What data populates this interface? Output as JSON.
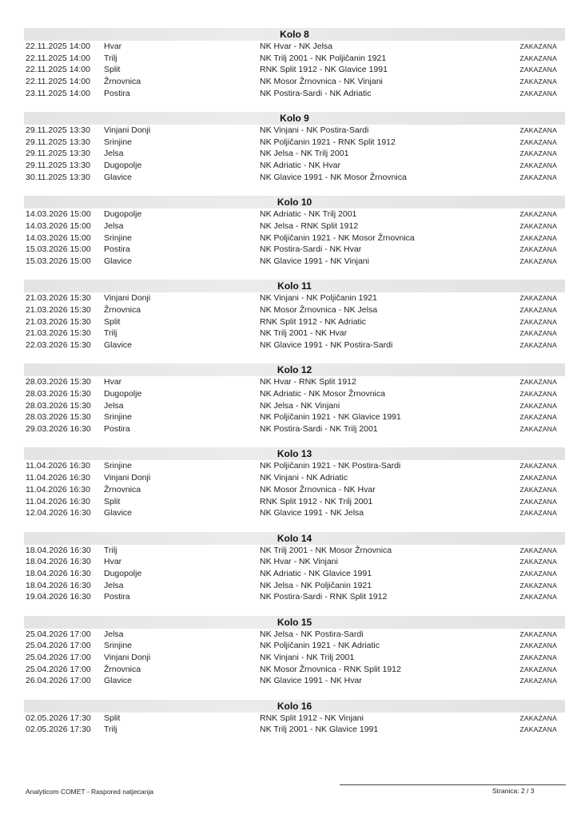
{
  "rounds": [
    {
      "title": "Kolo 8",
      "matches": [
        [
          "22.11.2025 14:00",
          "Hvar",
          "NK Hvar - NK Jelsa",
          "ZAKAZANA"
        ],
        [
          "22.11.2025 14:00",
          "Trilj",
          "NK Trilj 2001 - NK Poljičanin 1921",
          "ZAKAZANA"
        ],
        [
          "22.11.2025 14:00",
          "Split",
          "RNK Split 1912 - NK Glavice 1991",
          "ZAKAZANA"
        ],
        [
          "22.11.2025 14:00",
          "Žrnovnica",
          "NK Mosor Žrnovnica - NK Vinjani",
          "ZAKAZANA"
        ],
        [
          "23.11.2025 14:00",
          "Postira",
          "NK Postira-Sardi - NK Adriatic",
          "ZAKAZANA"
        ]
      ]
    },
    {
      "title": "Kolo 9",
      "matches": [
        [
          "29.11.2025 13:30",
          "Vinjani Donji",
          "NK Vinjani - NK Postira-Sardi",
          "ZAKAZANA"
        ],
        [
          "29.11.2025 13:30",
          "Srinjine",
          "NK Poljičanin 1921 - RNK Split 1912",
          "ZAKAZANA"
        ],
        [
          "29.11.2025 13:30",
          "Jelsa",
          "NK Jelsa - NK Trilj 2001",
          "ZAKAZANA"
        ],
        [
          "29.11.2025 13:30",
          "Dugopolje",
          "NK Adriatic - NK Hvar",
          "ZAKAZANA"
        ],
        [
          "30.11.2025 13:30",
          "Glavice",
          "NK Glavice 1991 - NK Mosor Žrnovnica",
          "ZAKAZANA"
        ]
      ]
    },
    {
      "title": "Kolo 10",
      "matches": [
        [
          "14.03.2026 15:00",
          "Dugopolje",
          "NK Adriatic - NK Trilj 2001",
          "ZAKAZANA"
        ],
        [
          "14.03.2026 15:00",
          "Jelsa",
          "NK Jelsa - RNK Split 1912",
          "ZAKAZANA"
        ],
        [
          "14.03.2026 15:00",
          "Srinjine",
          "NK Poljičanin 1921 - NK Mosor Žrnovnica",
          "ZAKAZANA"
        ],
        [
          "15.03.2026 15:00",
          "Postira",
          "NK Postira-Sardi - NK Hvar",
          "ZAKAZANA"
        ],
        [
          "15.03.2026 15:00",
          "Glavice",
          "NK Glavice 1991 - NK Vinjani",
          "ZAKAZANA"
        ]
      ]
    },
    {
      "title": "Kolo 11",
      "matches": [
        [
          "21.03.2026 15:30",
          "Vinjani Donji",
          "NK Vinjani - NK Poljičanin 1921",
          "ZAKAZANA"
        ],
        [
          "21.03.2026 15:30",
          "Žrnovnica",
          "NK Mosor Žrnovnica - NK Jelsa",
          "ZAKAZANA"
        ],
        [
          "21.03.2026 15:30",
          "Split",
          "RNK Split 1912 - NK Adriatic",
          "ZAKAZANA"
        ],
        [
          "21.03.2026 15:30",
          "Trilj",
          "NK Trilj 2001 - NK Hvar",
          "ZAKAZANA"
        ],
        [
          "22.03.2026 15:30",
          "Glavice",
          "NK Glavice 1991 - NK Postira-Sardi",
          "ZAKAZANA"
        ]
      ]
    },
    {
      "title": "Kolo 12",
      "matches": [
        [
          "28.03.2026 15:30",
          "Hvar",
          "NK Hvar - RNK Split 1912",
          "ZAKAZANA"
        ],
        [
          "28.03.2026 15:30",
          "Dugopolje",
          "NK Adriatic - NK Mosor Žrnovnica",
          "ZAKAZANA"
        ],
        [
          "28.03.2026 15:30",
          "Jelsa",
          "NK Jelsa - NK Vinjani",
          "ZAKAZANA"
        ],
        [
          "28.03.2026 15:30",
          "Srinjine",
          "NK Poljičanin 1921 - NK Glavice 1991",
          "ZAKAZANA"
        ],
        [
          "29.03.2026 16:30",
          "Postira",
          "NK Postira-Sardi - NK Trilj 2001",
          "ZAKAZANA"
        ]
      ]
    },
    {
      "title": "Kolo 13",
      "matches": [
        [
          "11.04.2026 16:30",
          "Srinjine",
          "NK Poljičanin 1921 - NK Postira-Sardi",
          "ZAKAZANA"
        ],
        [
          "11.04.2026 16:30",
          "Vinjani Donji",
          "NK Vinjani - NK Adriatic",
          "ZAKAZANA"
        ],
        [
          "11.04.2026 16:30",
          "Žrnovnica",
          "NK Mosor Žrnovnica - NK Hvar",
          "ZAKAZANA"
        ],
        [
          "11.04.2026 16:30",
          "Split",
          "RNK Split 1912 - NK Trilj 2001",
          "ZAKAZANA"
        ],
        [
          "12.04.2026 16:30",
          "Glavice",
          "NK Glavice 1991 - NK Jelsa",
          "ZAKAZANA"
        ]
      ]
    },
    {
      "title": "Kolo 14",
      "matches": [
        [
          "18.04.2026 16:30",
          "Trilj",
          "NK Trilj 2001 - NK Mosor Žrnovnica",
          "ZAKAZANA"
        ],
        [
          "18.04.2026 16:30",
          "Hvar",
          "NK Hvar - NK Vinjani",
          "ZAKAZANA"
        ],
        [
          "18.04.2026 16:30",
          "Dugopolje",
          "NK Adriatic - NK Glavice 1991",
          "ZAKAZANA"
        ],
        [
          "18.04.2026 16:30",
          "Jelsa",
          "NK Jelsa - NK Poljičanin 1921",
          "ZAKAZANA"
        ],
        [
          "19.04.2026 16:30",
          "Postira",
          "NK Postira-Sardi - RNK Split 1912",
          "ZAKAZANA"
        ]
      ]
    },
    {
      "title": "Kolo 15",
      "matches": [
        [
          "25.04.2026 17:00",
          "Jelsa",
          "NK Jelsa - NK Postira-Sardi",
          "ZAKAZANA"
        ],
        [
          "25.04.2026 17:00",
          "Srinjine",
          "NK Poljičanin 1921 - NK Adriatic",
          "ZAKAZANA"
        ],
        [
          "25.04.2026 17:00",
          "Vinjani Donji",
          "NK Vinjani - NK Trilj 2001",
          "ZAKAZANA"
        ],
        [
          "25.04.2026 17:00",
          "Žrnovnica",
          "NK Mosor Žrnovnica - RNK Split 1912",
          "ZAKAZANA"
        ],
        [
          "26.04.2026 17:00",
          "Glavice",
          "NK Glavice 1991 - NK Hvar",
          "ZAKAZANA"
        ]
      ]
    },
    {
      "title": "Kolo 16",
      "matches": [
        [
          "02.05.2026 17:30",
          "Split",
          "RNK Split 1912 - NK Vinjani",
          "ZAKAZANA"
        ],
        [
          "02.05.2026 17:30",
          "Trilj",
          "NK Trilj 2001 - NK Glavice 1991",
          "ZAKAZANA"
        ]
      ]
    }
  ],
  "footer": {
    "left": "Analyticom COMET - Raspored natjecanja",
    "page": "Stranica: 2 / 3"
  }
}
